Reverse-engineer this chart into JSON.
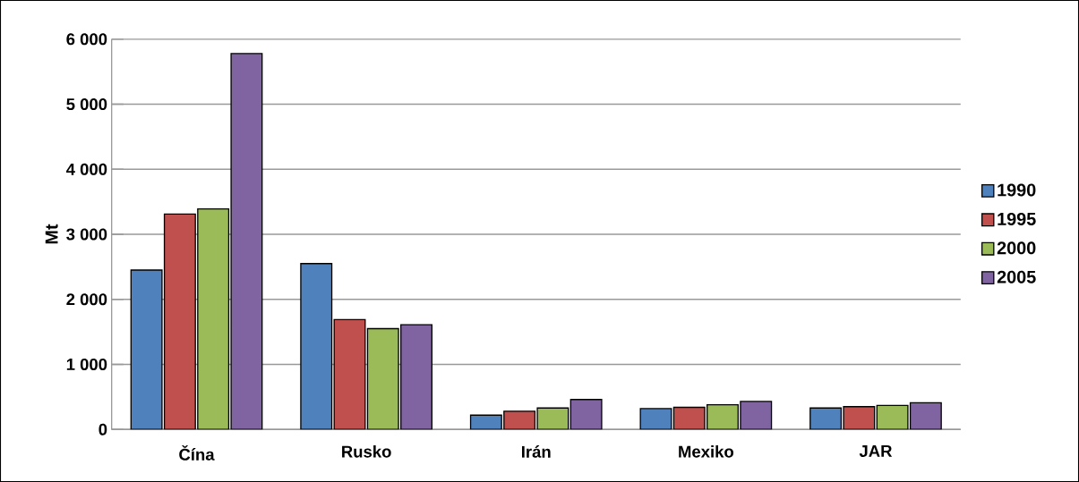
{
  "chart_data": {
    "type": "bar",
    "ylabel": "Mt",
    "categories": [
      "Čína",
      "Rusko",
      "Irán",
      "Mexiko",
      "JAR"
    ],
    "series": [
      {
        "name": "1990",
        "color": "#4f81bd",
        "values": [
          2450,
          2550,
          220,
          320,
          330
        ]
      },
      {
        "name": "1995",
        "color": "#c0504d",
        "values": [
          3310,
          1690,
          280,
          340,
          350
        ]
      },
      {
        "name": "2000",
        "color": "#9bbb59",
        "values": [
          3390,
          1550,
          330,
          380,
          370
        ]
      },
      {
        "name": "2005",
        "color": "#8064a2",
        "values": [
          5780,
          1610,
          460,
          430,
          410
        ]
      }
    ],
    "ylim": [
      0,
      6000
    ],
    "yticks": [
      {
        "value": 0,
        "label": "0"
      },
      {
        "value": 1000,
        "label": "1 000"
      },
      {
        "value": 2000,
        "label": "2 000"
      },
      {
        "value": 3000,
        "label": "3 000"
      },
      {
        "value": 4000,
        "label": "4 000"
      },
      {
        "value": 5000,
        "label": "5 000"
      },
      {
        "value": 6000,
        "label": "6 000"
      }
    ],
    "grid": "y",
    "legend": "right"
  }
}
